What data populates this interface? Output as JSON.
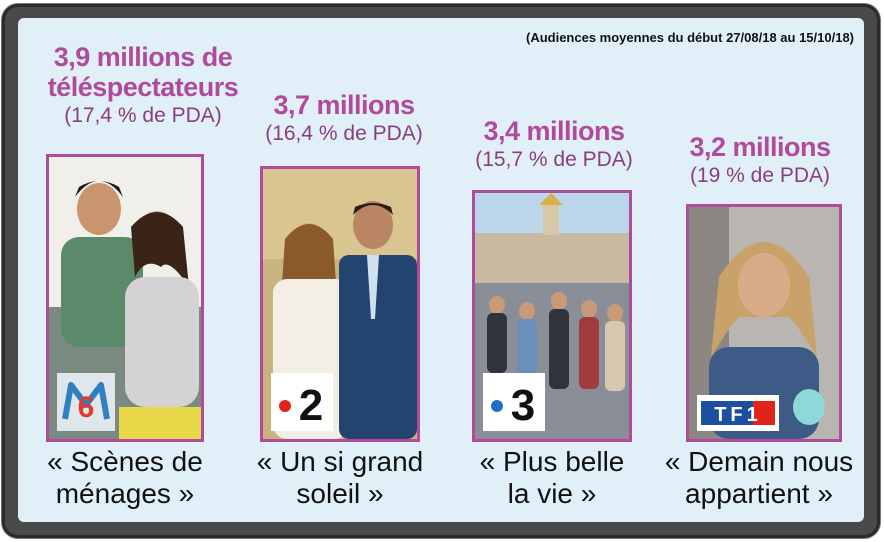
{
  "note": "(Audiences moyennes du début 27/08/18 au 15/10/18)",
  "shows": [
    {
      "audience_line1": "3,9 millions de",
      "audience_line2": "téléspectateurs",
      "share": "(17,4 % de PDA)",
      "title_line1": "« Scènes de",
      "title_line2": "ménages »",
      "channel_icon": "m6-logo-icon",
      "channel_text": "6"
    },
    {
      "audience_line1": "3,7 millions",
      "share": "(16,4 % de PDA)",
      "title_line1": "« Un si grand",
      "title_line2": "soleil »",
      "channel_icon": "france2-logo-icon",
      "channel_text": "2"
    },
    {
      "audience_line1": "3,4 millions",
      "share": "(15,7 % de PDA)",
      "title_line1": "« Plus belle",
      "title_line2": "la vie »",
      "channel_icon": "france3-logo-icon",
      "channel_text": "3"
    },
    {
      "audience_line1": "3,2 millions",
      "share": "(19 % de PDA)",
      "title_line1": "« Demain nous",
      "title_line2": "appartient »",
      "channel_icon": "tf1-logo-icon",
      "channel_text": "TF1"
    }
  ],
  "colors": {
    "accent": "#b04a9c",
    "screen_background": "#e1f0f8",
    "frame": "#4a4a4a"
  }
}
